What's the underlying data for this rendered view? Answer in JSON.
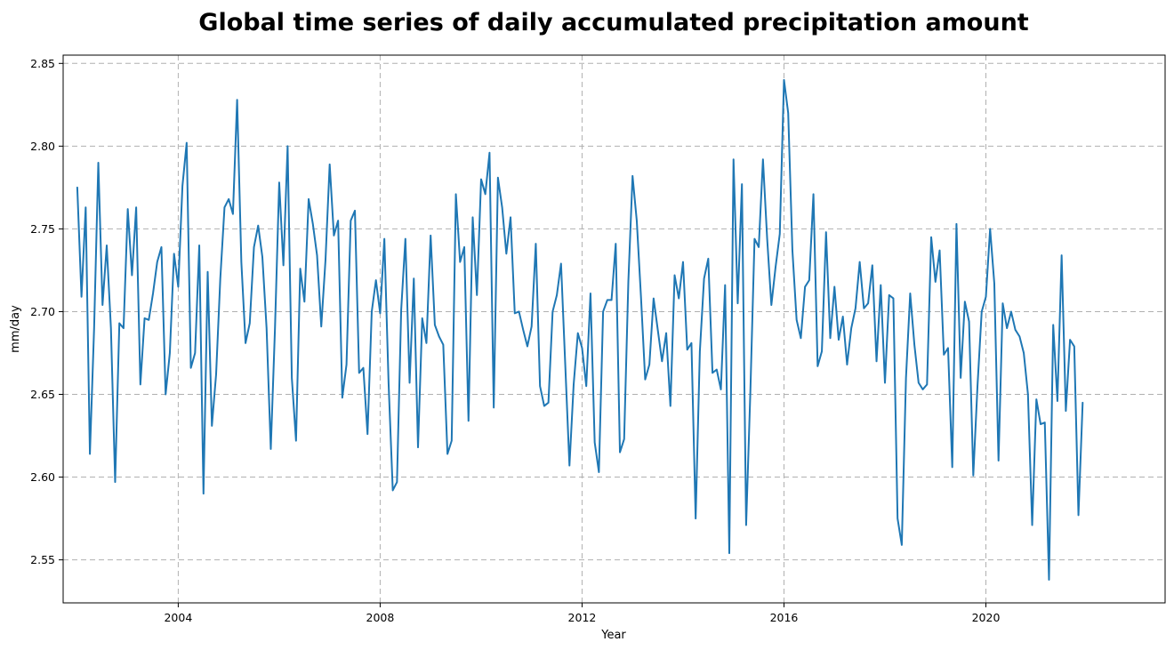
{
  "chart_data": {
    "type": "line",
    "title": "Global time series of daily accumulated precipitation amount",
    "xlabel": "Year",
    "ylabel": "mm/day",
    "xlim": [
      2001.72,
      2023.55
    ],
    "ylim": [
      2.524,
      2.855
    ],
    "grid": true,
    "x_ticks": [
      2004,
      2008,
      2012,
      2016,
      2020
    ],
    "x_tick_labels": [
      "2004",
      "2008",
      "2012",
      "2016",
      "2020"
    ],
    "y_ticks": [
      2.55,
      2.6,
      2.65,
      2.7,
      2.75,
      2.8,
      2.85
    ],
    "y_tick_labels": [
      "2.55",
      "2.60",
      "2.65",
      "2.70",
      "2.75",
      "2.80",
      "2.85"
    ],
    "colors": {
      "series": "#1f77b4"
    },
    "series": [
      {
        "x_start": "2002-01",
        "frequency": "monthly",
        "values": [
          2.775,
          2.709,
          2.763,
          2.614,
          2.69,
          2.79,
          2.704,
          2.74,
          2.69,
          2.597,
          2.693,
          2.69,
          2.762,
          2.722,
          2.763,
          2.656,
          2.696,
          2.695,
          2.711,
          2.73,
          2.739,
          2.65,
          2.675,
          2.735,
          2.715,
          2.776,
          2.802,
          2.666,
          2.675,
          2.74,
          2.59,
          2.724,
          2.631,
          2.662,
          2.72,
          2.763,
          2.768,
          2.759,
          2.828,
          2.73,
          2.681,
          2.693,
          2.739,
          2.752,
          2.733,
          2.69,
          2.617,
          2.69,
          2.778,
          2.728,
          2.8,
          2.66,
          2.622,
          2.726,
          2.706,
          2.768,
          2.753,
          2.734,
          2.691,
          2.731,
          2.789,
          2.746,
          2.755,
          2.648,
          2.668,
          2.755,
          2.761,
          2.663,
          2.666,
          2.626,
          2.7,
          2.719,
          2.699,
          2.744,
          2.657,
          2.592,
          2.597,
          2.701,
          2.744,
          2.657,
          2.72,
          2.618,
          2.696,
          2.681,
          2.746,
          2.692,
          2.685,
          2.68,
          2.614,
          2.622,
          2.771,
          2.73,
          2.739,
          2.634,
          2.757,
          2.71,
          2.78,
          2.771,
          2.796,
          2.642,
          2.781,
          2.763,
          2.735,
          2.757,
          2.699,
          2.7,
          2.689,
          2.679,
          2.691,
          2.741,
          2.655,
          2.643,
          2.645,
          2.7,
          2.71,
          2.729,
          2.668,
          2.607,
          2.656,
          2.687,
          2.678,
          2.655,
          2.711,
          2.621,
          2.603,
          2.7,
          2.707,
          2.707,
          2.741,
          2.615,
          2.623,
          2.718,
          2.782,
          2.755,
          2.709,
          2.659,
          2.668,
          2.708,
          2.689,
          2.67,
          2.687,
          2.643,
          2.722,
          2.708,
          2.73,
          2.677,
          2.681,
          2.575,
          2.676,
          2.72,
          2.732,
          2.663,
          2.665,
          2.653,
          2.716,
          2.554,
          2.792,
          2.705,
          2.777,
          2.571,
          2.651,
          2.744,
          2.739,
          2.792,
          2.744,
          2.704,
          2.727,
          2.747,
          2.84,
          2.82,
          2.737,
          2.695,
          2.684,
          2.715,
          2.719,
          2.771,
          2.667,
          2.676,
          2.748,
          2.684,
          2.715,
          2.683,
          2.697,
          2.668,
          2.69,
          2.702,
          2.73,
          2.702,
          2.705,
          2.728,
          2.67,
          2.716,
          2.657,
          2.71,
          2.708,
          2.575,
          2.559,
          2.66,
          2.711,
          2.68,
          2.657,
          2.653,
          2.656,
          2.745,
          2.718,
          2.737,
          2.674,
          2.678,
          2.606,
          2.753,
          2.66,
          2.706,
          2.694,
          2.601,
          2.655,
          2.7,
          2.709,
          2.75,
          2.717,
          2.61,
          2.705,
          2.69,
          2.7,
          2.689,
          2.685,
          2.675,
          2.65,
          2.571,
          2.647,
          2.632,
          2.633,
          2.538,
          2.692,
          2.646,
          2.734,
          2.64,
          2.683,
          2.679,
          2.577,
          2.645
        ]
      }
    ]
  }
}
